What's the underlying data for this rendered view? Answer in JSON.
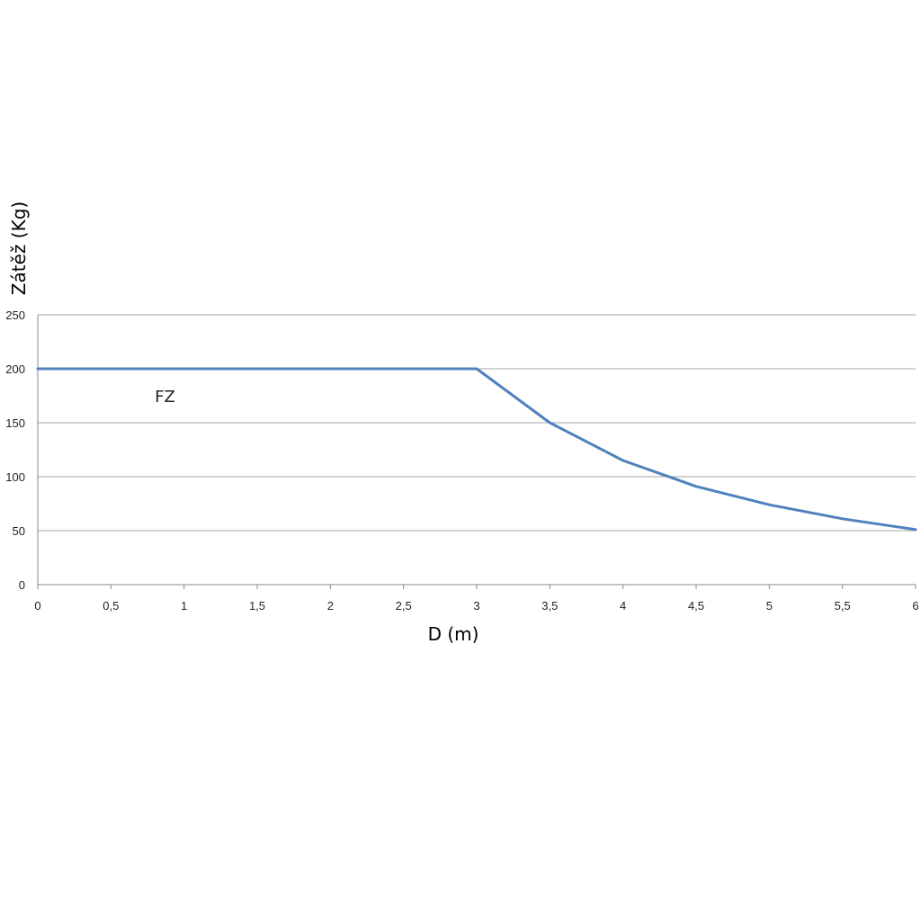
{
  "chart_data": {
    "type": "line",
    "xlabel": "D (m)",
    "ylabel": "Zátěž (Kg)",
    "xlim": [
      0,
      6
    ],
    "ylim": [
      0,
      250
    ],
    "grid": true,
    "x_tick_labels": [
      "0",
      "0,5",
      "1",
      "1,5",
      "2",
      "2,5",
      "3",
      "3,5",
      "4",
      "4,5",
      "5",
      "5,5",
      "6"
    ],
    "y_tick_labels": [
      "0",
      "50",
      "100",
      "150",
      "200",
      "250"
    ],
    "series": [
      {
        "name": "FZ",
        "color": "#4f81bd",
        "x": [
          0,
          0.5,
          1,
          1.5,
          2,
          2.5,
          3,
          3.5,
          4,
          4.5,
          5,
          5.5,
          6
        ],
        "y": [
          200,
          200,
          200,
          200,
          200,
          200,
          200,
          150,
          115,
          91,
          74,
          61,
          51
        ]
      }
    ],
    "annotations": [
      {
        "text": "FZ",
        "x": 0.8,
        "y": 174
      }
    ],
    "colors": {
      "line": "#4f81bd",
      "grid": "#a6a6a6",
      "axis": "#888888"
    }
  }
}
